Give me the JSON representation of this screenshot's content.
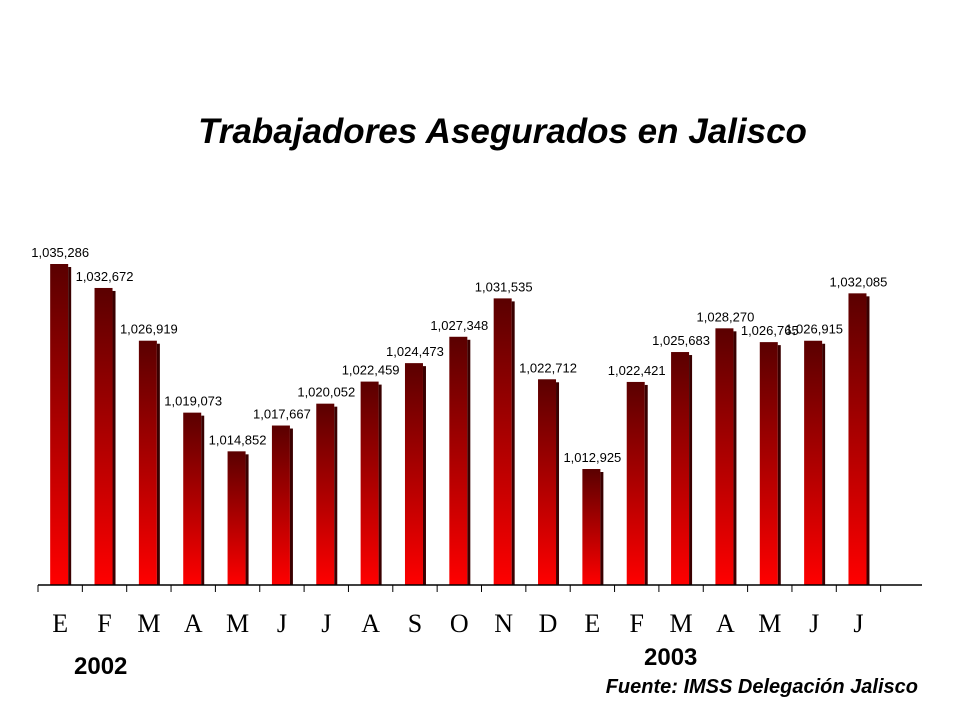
{
  "chart_data": {
    "type": "bar",
    "title": "Trabajadores Asegurados en Jalisco",
    "categories": [
      "E",
      "F",
      "M",
      "A",
      "M",
      "J",
      "J",
      "A",
      "S",
      "O",
      "N",
      "D",
      "E",
      "F",
      "M",
      "A",
      "M",
      "J",
      "J"
    ],
    "values": [
      1035286,
      1032672,
      1026919,
      1019073,
      1014852,
      1017667,
      1020052,
      1022459,
      1024473,
      1027348,
      1031535,
      1022712,
      1012925,
      1022421,
      1025683,
      1028270,
      1026765,
      1026915,
      1032085
    ],
    "value_labels": [
      "1,035,286",
      "1,032,672",
      "1,026,919",
      "1,019,073",
      "1,014,852",
      "1,017,667",
      "1,020,052",
      "1,022,459",
      "1,024,473",
      "1,027,348",
      "1,031,535",
      "1,022,712",
      "1,012,925",
      "1,022,421",
      "1,025,683",
      "1,028,270",
      "1,026,765",
      "1,026,915",
      "1,032,085"
    ],
    "year_labels": [
      "2002",
      "2003"
    ],
    "source": "Fuente: IMSS Delegación Jalisco",
    "bar_color_top": "#5a0000",
    "bar_color_bottom": "#ff0000",
    "grid": false,
    "legend": "none"
  }
}
